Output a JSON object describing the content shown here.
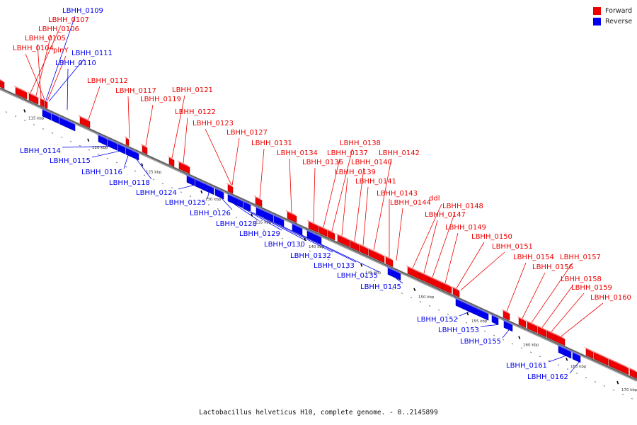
{
  "caption": "Lactobacillus helveticus H10, complete genome. - 0..2145899",
  "legend": [
    {
      "label": "Forward",
      "color": "#ee0000"
    },
    {
      "label": "Reverse",
      "color": "#0000ee"
    }
  ],
  "colors": {
    "forward": "#ee0000",
    "reverse": "#0000ee",
    "backbone": "#777777"
  },
  "ticks": [
    "115 kbp",
    "120 kbp",
    "125 kbp",
    "130 kbp",
    "135 kbp",
    "140 kbp",
    "145 kbp",
    "150 kbp",
    "155 kbp",
    "160 kbp",
    "165 kbp",
    "170 kbp"
  ],
  "forward_labels": [
    "LBHH_0107",
    "LBHH_0106",
    "LBHH_0105",
    "LBHH_0104",
    "plnY",
    "LBHH_0112",
    "LBHH_0117",
    "LBHH_0119",
    "LBHH_0121",
    "LBHH_0122",
    "LBHH_0123",
    "LBHH_0127",
    "LBHH_0131",
    "LBHH_0134",
    "LBHH_0136",
    "LBHH_0137",
    "LBHH_0138",
    "LBHH_0139",
    "LBHH_0140",
    "LBHH_0141",
    "LBHH_0142",
    "LBHH_0143",
    "LBHH_0144",
    "ddl",
    "LBHH_0147",
    "LBHH_0148",
    "LBHH_0149",
    "LBHH_0150",
    "LBHH_0151",
    "LBHH_0154",
    "LBHH_0156",
    "LBHH_0157",
    "LBHH_0158",
    "LBHH_0159",
    "LBHH_0160"
  ],
  "reverse_labels": [
    "LBHH_0109",
    "LBHH_0111",
    "LBHH_0110",
    "LBHH_0114",
    "LBHH_0115",
    "LBHH_0116",
    "LBHH_0118",
    "LBHH_0124",
    "LBHH_0125",
    "LBHH_0126",
    "LBHH_0128",
    "LBHH_0129",
    "LBHH_0130",
    "LBHH_0132",
    "LBHH_0133",
    "LBHH_0135",
    "LBHH_0145",
    "LBHH_0152",
    "LBHH_0153",
    "LBHH_0155",
    "LBHH_0161",
    "LBHH_0162"
  ]
}
